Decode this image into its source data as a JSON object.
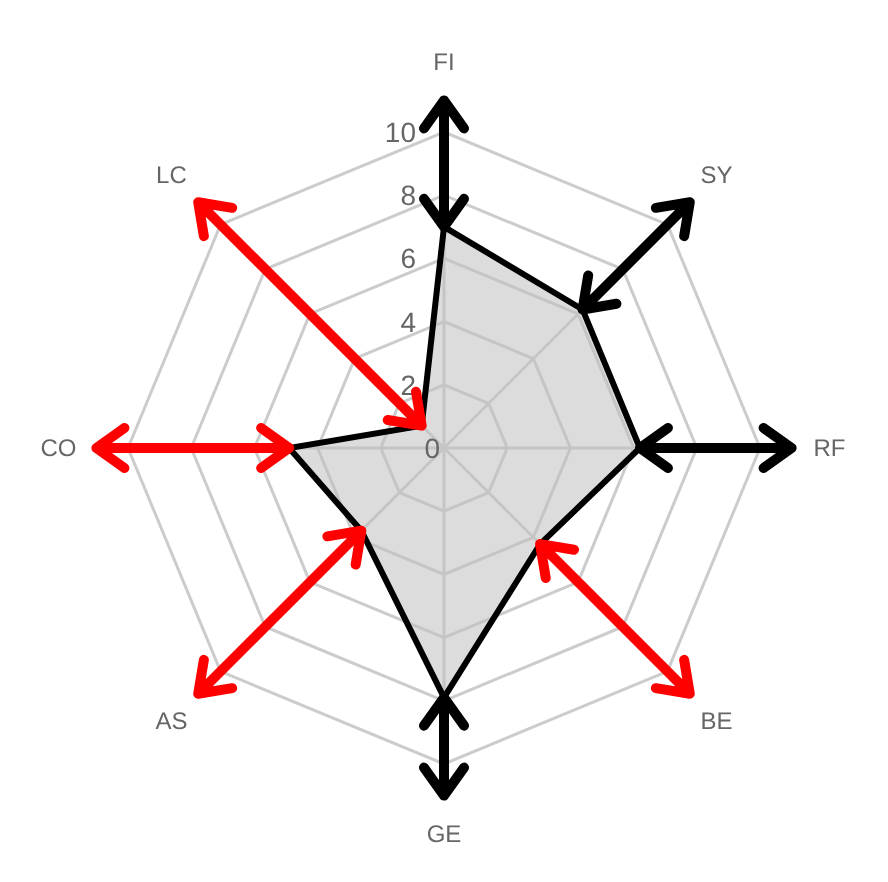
{
  "chart_data": {
    "type": "radar",
    "categories": [
      "FI",
      "SY",
      "RF",
      "BE",
      "GE",
      "AS",
      "CO",
      "LC"
    ],
    "series": [
      {
        "color": "#000000",
        "values": [
          7,
          6.2,
          6.2,
          4.3,
          7.9,
          3.7,
          4.9,
          1
        ]
      }
    ],
    "colors": [
      "#000000",
      "#000000",
      "#000000",
      "#ff0000",
      "#000000",
      "#ff0000",
      "#ff0000",
      "#ff0000"
    ],
    "ylim": [
      0,
      10
    ],
    "yticks": [
      0,
      2,
      4,
      6,
      8,
      10
    ],
    "grid": true
  }
}
